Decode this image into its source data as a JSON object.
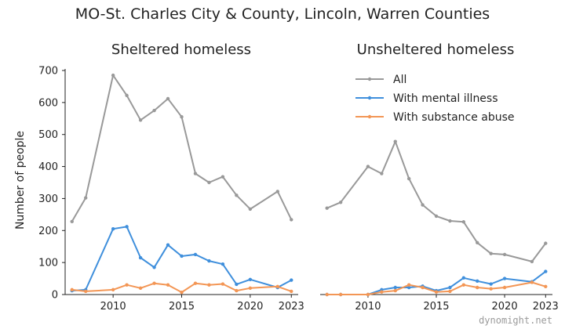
{
  "title": "MO-St. Charles City & County, Lincoln, Warren Counties",
  "watermark": "dynomight.net",
  "legend": [
    {
      "label": "All",
      "color": "#999999"
    },
    {
      "label": "With mental illness",
      "color": "#3f8fdc"
    },
    {
      "label": "With substance abuse",
      "color": "#f39655"
    }
  ],
  "chart_data": [
    {
      "type": "line",
      "title": "Sheltered homeless",
      "ylabel": "Number of people",
      "xlim": [
        2006.5,
        2023.5
      ],
      "ylim": [
        0,
        700
      ],
      "xticks": [
        2010,
        2015,
        2020,
        2023
      ],
      "yticks": [
        0,
        100,
        200,
        300,
        400,
        500,
        600,
        700
      ],
      "series": [
        {
          "name": "All",
          "color": "#999999",
          "x": [
            2007,
            2008,
            2010,
            2011,
            2012,
            2013,
            2014,
            2015,
            2016,
            2017,
            2018,
            2019,
            2020,
            2022,
            2023
          ],
          "y": [
            228,
            302,
            685,
            622,
            545,
            575,
            612,
            555,
            378,
            350,
            368,
            310,
            267,
            322,
            234
          ]
        },
        {
          "name": "With mental illness",
          "color": "#3f8fdc",
          "x": [
            2007,
            2008,
            2010,
            2011,
            2012,
            2013,
            2014,
            2015,
            2016,
            2017,
            2018,
            2019,
            2020,
            2022,
            2023
          ],
          "y": [
            12,
            15,
            205,
            212,
            115,
            85,
            155,
            120,
            125,
            105,
            95,
            32,
            47,
            22,
            45
          ]
        },
        {
          "name": "With substance abuse",
          "color": "#f39655",
          "x": [
            2007,
            2008,
            2010,
            2011,
            2012,
            2013,
            2014,
            2015,
            2016,
            2017,
            2018,
            2019,
            2020,
            2022,
            2023
          ],
          "y": [
            15,
            10,
            15,
            30,
            20,
            35,
            30,
            7,
            35,
            30,
            33,
            12,
            20,
            25,
            10
          ]
        }
      ]
    },
    {
      "type": "line",
      "title": "Unsheltered homeless",
      "xlim": [
        2006.5,
        2023.5
      ],
      "ylim": [
        0,
        700
      ],
      "xticks": [
        2010,
        2015,
        2020,
        2023
      ],
      "series": [
        {
          "name": "All",
          "color": "#999999",
          "x": [
            2007,
            2008,
            2010,
            2011,
            2012,
            2013,
            2014,
            2015,
            2016,
            2017,
            2018,
            2019,
            2020,
            2022,
            2023
          ],
          "y": [
            270,
            288,
            400,
            378,
            478,
            362,
            280,
            245,
            230,
            227,
            162,
            128,
            125,
            103,
            160
          ]
        },
        {
          "name": "With mental illness",
          "color": "#3f8fdc",
          "x": [
            2007,
            2008,
            2010,
            2011,
            2012,
            2013,
            2014,
            2015,
            2016,
            2017,
            2018,
            2019,
            2020,
            2022,
            2023
          ],
          "y": [
            0,
            0,
            0,
            15,
            22,
            22,
            26,
            12,
            22,
            52,
            42,
            33,
            50,
            40,
            72
          ]
        },
        {
          "name": "With substance abuse",
          "color": "#f39655",
          "x": [
            2007,
            2008,
            2010,
            2011,
            2012,
            2013,
            2014,
            2015,
            2016,
            2017,
            2018,
            2019,
            2020,
            2022,
            2023
          ],
          "y": [
            0,
            0,
            0,
            8,
            12,
            30,
            22,
            8,
            10,
            30,
            22,
            18,
            22,
            38,
            25
          ]
        }
      ]
    }
  ]
}
